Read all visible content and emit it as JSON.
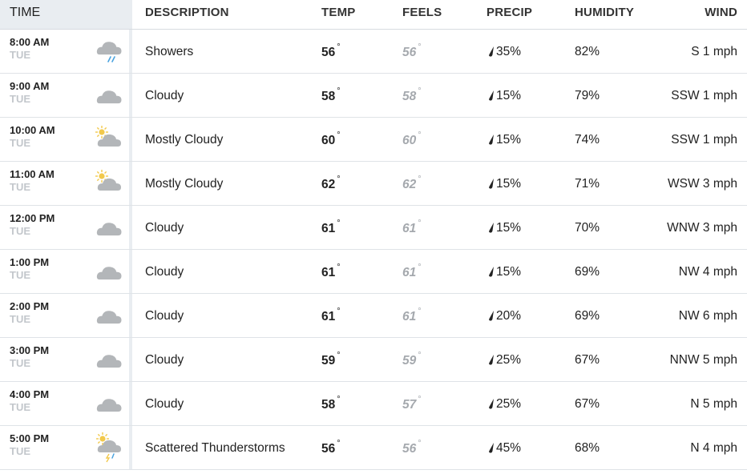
{
  "columns": {
    "time": "TIME",
    "description": "DESCRIPTION",
    "temp": "TEMP",
    "feels": "FEELS",
    "precip": "PRECIP",
    "humidity": "HUMIDITY",
    "wind": "WIND"
  },
  "degree_symbol": "°",
  "colors": {
    "header_bg": "#e9edf1",
    "day_text": "#c3c7cc",
    "feels_text": "#a5a9ae",
    "cloud": "#b3b6b9",
    "sun": "#f2c94c",
    "rain": "#4aa3df"
  },
  "rows": [
    {
      "time": "8:00 AM",
      "day": "TUE",
      "icon": "showers-icon",
      "description": "Showers",
      "temp": "56",
      "feels": "56",
      "precip": "35%",
      "humidity": "82%",
      "wind": "S 1 mph"
    },
    {
      "time": "9:00 AM",
      "day": "TUE",
      "icon": "cloudy-icon",
      "description": "Cloudy",
      "temp": "58",
      "feels": "58",
      "precip": "15%",
      "humidity": "79%",
      "wind": "SSW 1 mph"
    },
    {
      "time": "10:00 AM",
      "day": "TUE",
      "icon": "mostly-cloudy-icon",
      "description": "Mostly Cloudy",
      "temp": "60",
      "feels": "60",
      "precip": "15%",
      "humidity": "74%",
      "wind": "SSW 1 mph"
    },
    {
      "time": "11:00 AM",
      "day": "TUE",
      "icon": "mostly-cloudy-icon",
      "description": "Mostly Cloudy",
      "temp": "62",
      "feels": "62",
      "precip": "15%",
      "humidity": "71%",
      "wind": "WSW 3 mph"
    },
    {
      "time": "12:00 PM",
      "day": "TUE",
      "icon": "cloudy-icon",
      "description": "Cloudy",
      "temp": "61",
      "feels": "61",
      "precip": "15%",
      "humidity": "70%",
      "wind": "WNW 3 mph"
    },
    {
      "time": "1:00 PM",
      "day": "TUE",
      "icon": "cloudy-icon",
      "description": "Cloudy",
      "temp": "61",
      "feels": "61",
      "precip": "15%",
      "humidity": "69%",
      "wind": "NW 4 mph"
    },
    {
      "time": "2:00 PM",
      "day": "TUE",
      "icon": "cloudy-icon",
      "description": "Cloudy",
      "temp": "61",
      "feels": "61",
      "precip": "20%",
      "humidity": "69%",
      "wind": "NW 6 mph"
    },
    {
      "time": "3:00 PM",
      "day": "TUE",
      "icon": "cloudy-icon",
      "description": "Cloudy",
      "temp": "59",
      "feels": "59",
      "precip": "25%",
      "humidity": "67%",
      "wind": "NNW 5 mph"
    },
    {
      "time": "4:00 PM",
      "day": "TUE",
      "icon": "cloudy-icon",
      "description": "Cloudy",
      "temp": "58",
      "feels": "57",
      "precip": "25%",
      "humidity": "67%",
      "wind": "N 5 mph"
    },
    {
      "time": "5:00 PM",
      "day": "TUE",
      "icon": "scattered-thunderstorms-icon",
      "description": "Scattered Thunderstorms",
      "temp": "56",
      "feels": "56",
      "precip": "45%",
      "humidity": "68%",
      "wind": "N 4 mph"
    }
  ]
}
